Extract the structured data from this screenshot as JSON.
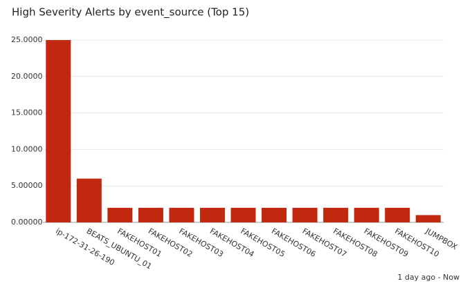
{
  "chart_data": {
    "type": "bar",
    "title": "High Severity Alerts by event_source (Top 15)",
    "categories": [
      "ip-172-31-26-190",
      "BEATS_UBUNTU_01",
      "FAKEHOST01",
      "FAKEHOST02",
      "FAKEHOST03",
      "FAKEHOST04",
      "FAKEHOST05",
      "FAKEHOST06",
      "FAKEHOST07",
      "FAKEHOST08",
      "FAKEHOST09",
      "FAKEHOST10",
      "JUMPBOX"
    ],
    "values": [
      25,
      6,
      2,
      2,
      2,
      2,
      2,
      2,
      2,
      2,
      2,
      2,
      1
    ],
    "color": "#c0280f",
    "ylim": [
      0,
      25
    ],
    "yticks": [
      {
        "value": 0,
        "label": "0.00000"
      },
      {
        "value": 5,
        "label": "5.00000"
      },
      {
        "value": 10,
        "label": "10.0000"
      },
      {
        "value": 15,
        "label": "15.0000"
      },
      {
        "value": 20,
        "label": "20.0000"
      },
      {
        "value": 25,
        "label": "25.0000"
      }
    ],
    "grid": true
  },
  "footer": "1 day ago - Now"
}
